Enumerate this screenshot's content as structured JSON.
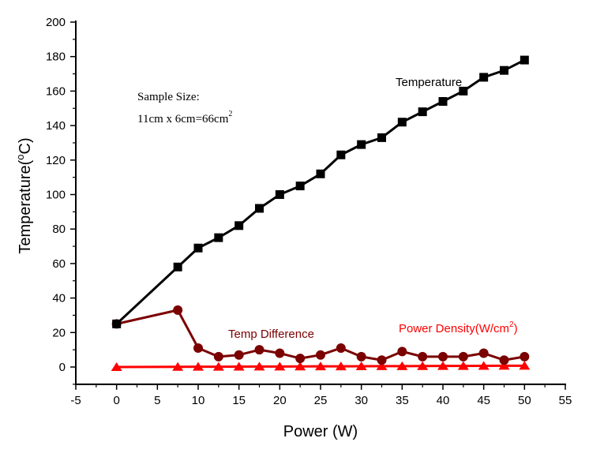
{
  "chart_data": {
    "type": "line",
    "title": "",
    "xlabel": "Power (W)",
    "ylabel_main": "Temperature(",
    "ylabel_sup": "o",
    "ylabel_end": "C)",
    "xlim": [
      -5,
      55
    ],
    "ylim": [
      -10,
      200
    ],
    "xticks": [
      -5,
      0,
      5,
      10,
      15,
      20,
      25,
      30,
      35,
      40,
      45,
      50,
      55
    ],
    "yticks": [
      0,
      20,
      40,
      60,
      80,
      100,
      120,
      140,
      160,
      180,
      200
    ],
    "x_minor_step": 2.5,
    "y_minor_step": 10,
    "grid": false,
    "x": [
      0,
      7.5,
      10,
      12.5,
      15,
      17.5,
      20,
      22.5,
      25,
      27.5,
      30,
      32.5,
      35,
      37.5,
      40,
      42.5,
      45,
      47.5,
      50
    ],
    "series": [
      {
        "name": "Temperature",
        "color": "#000000",
        "marker": "square",
        "values": [
          25,
          58,
          69,
          75,
          82,
          92,
          100,
          105,
          112,
          123,
          129,
          133,
          142,
          148,
          154,
          160,
          168,
          172,
          178
        ]
      },
      {
        "name": "Temp Difference",
        "color": "#7b0000",
        "marker": "circle",
        "values": [
          25,
          33,
          11,
          6,
          7,
          10,
          8,
          5,
          7,
          11,
          6,
          4,
          9,
          6,
          6,
          6,
          8,
          4,
          6
        ]
      },
      {
        "name": "Power Density(W/cm2)",
        "color": "#ff0000",
        "marker": "triangle",
        "values": [
          0,
          0.11,
          0.15,
          0.19,
          0.23,
          0.27,
          0.3,
          0.34,
          0.38,
          0.42,
          0.45,
          0.49,
          0.53,
          0.57,
          0.61,
          0.64,
          0.68,
          0.72,
          0.76
        ]
      }
    ],
    "annotations": {
      "temperature_label": "Temperature",
      "temp_difference_label": "Temp Difference",
      "power_density_label": "Power Density(W/cm",
      "power_density_sup": "2",
      "power_density_end": ")",
      "sample_size_line1": "Sample Size:",
      "sample_size_line2": "11cm x 6cm=66cm",
      "sample_size_sup": "2"
    }
  }
}
